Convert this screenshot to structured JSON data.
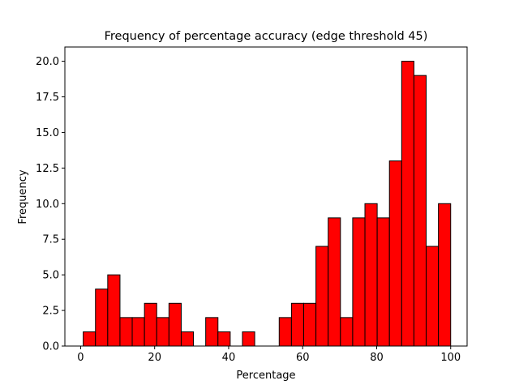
{
  "chart_data": {
    "type": "bar",
    "title": "Frequency of percentage accuracy (edge threshold 45)",
    "xlabel": "Percentage",
    "ylabel": "Frequency",
    "bin_edges_start": 0.7,
    "bin_width": 3.31,
    "values": [
      1,
      4,
      5,
      2,
      2,
      3,
      2,
      3,
      1,
      0,
      2,
      1,
      0,
      1,
      0,
      0,
      2,
      3,
      3,
      7,
      9,
      2,
      9,
      10,
      9,
      13,
      20,
      19,
      7,
      10
    ],
    "xlim": [
      -4.26,
      104.44
    ],
    "ylim": [
      0,
      21
    ],
    "xticks": [
      0,
      20,
      40,
      60,
      80,
      100
    ],
    "xtick_labels": [
      "0",
      "20",
      "40",
      "60",
      "80",
      "100"
    ],
    "yticks": [
      0,
      2.5,
      5,
      7.5,
      10,
      12.5,
      15,
      17.5,
      20
    ],
    "ytick_labels": [
      "0.0",
      "2.5",
      "5.0",
      "7.5",
      "10.0",
      "12.5",
      "15.0",
      "17.5",
      "20.0"
    ],
    "bar_color": "#ff0000",
    "edge_color": "#000000",
    "grid": false
  }
}
